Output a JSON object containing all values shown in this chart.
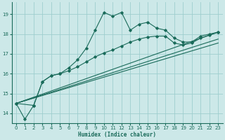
{
  "xlabel": "Humidex (Indice chaleur)",
  "bg_color": "#cce8e8",
  "grid_color": "#9ecece",
  "line_color": "#1a6b5a",
  "xlim": [
    -0.5,
    23.5
  ],
  "ylim": [
    13.5,
    19.6
  ],
  "yticks": [
    14,
    15,
    16,
    17,
    18,
    19
  ],
  "xticks": [
    0,
    1,
    2,
    3,
    4,
    5,
    6,
    7,
    8,
    9,
    10,
    11,
    12,
    13,
    14,
    15,
    16,
    17,
    18,
    19,
    20,
    21,
    22,
    23
  ],
  "s1_x": [
    0,
    1,
    2,
    3,
    4,
    5,
    6,
    7,
    8,
    9,
    10,
    11,
    12,
    13,
    14,
    15,
    16,
    17,
    18,
    19,
    20,
    21,
    22,
    23
  ],
  "s1_y": [
    14.5,
    13.7,
    14.4,
    15.6,
    15.9,
    16.0,
    16.3,
    16.7,
    17.3,
    18.2,
    19.1,
    18.9,
    19.1,
    18.2,
    18.5,
    18.6,
    18.3,
    18.2,
    17.8,
    17.6,
    17.6,
    17.9,
    18.0,
    18.1
  ],
  "s2_x": [
    0,
    2,
    3,
    4,
    5,
    6,
    7,
    8,
    9,
    10,
    11,
    12,
    13,
    14,
    15,
    16,
    17,
    18,
    19,
    20,
    21,
    22,
    23
  ],
  "s2_y": [
    14.5,
    14.4,
    15.6,
    15.9,
    16.0,
    16.15,
    16.35,
    16.6,
    16.85,
    17.05,
    17.2,
    17.4,
    17.6,
    17.75,
    17.85,
    17.9,
    17.9,
    17.55,
    17.45,
    17.55,
    17.8,
    17.95,
    18.1
  ],
  "trend1_x": [
    0,
    23
  ],
  "trend1_y": [
    14.5,
    17.55
  ],
  "trend2_x": [
    0,
    23
  ],
  "trend2_y": [
    14.5,
    17.75
  ],
  "trend3_x": [
    0,
    23
  ],
  "trend3_y": [
    14.5,
    18.1
  ]
}
